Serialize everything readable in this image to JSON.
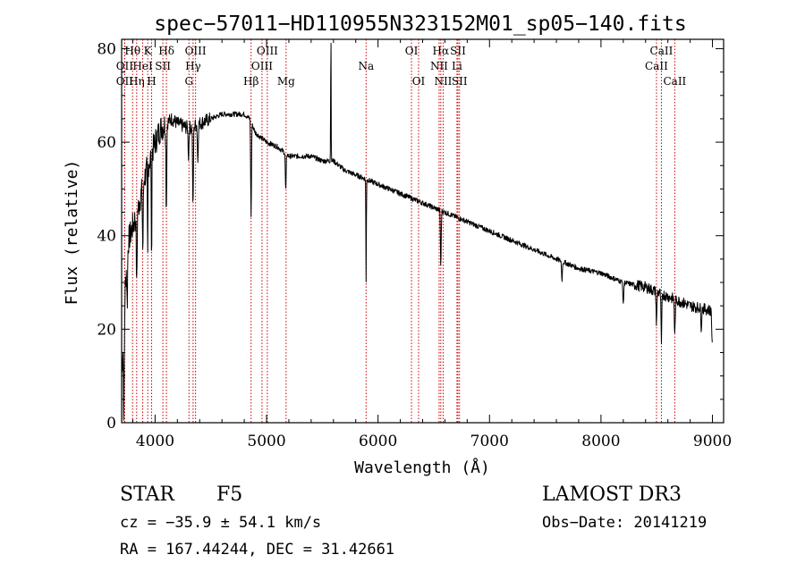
{
  "chart_data": {
    "type": "line",
    "title": "spec−57011−HD110955N323152M01_sp05−140.fits",
    "xlabel": "Wavelength (Å)",
    "ylabel": "Flux (relative)",
    "xlim": [
      3700,
      9100
    ],
    "ylim": [
      0,
      82
    ],
    "x_ticks": [
      4000,
      5000,
      6000,
      7000,
      8000,
      9000
    ],
    "y_ticks": [
      0,
      20,
      40,
      60,
      80
    ],
    "x_tick_labels": [
      "4000",
      "5000",
      "6000",
      "7000",
      "8000",
      "9000"
    ],
    "y_tick_labels": [
      "0",
      "20",
      "40",
      "60",
      "80"
    ],
    "continuum": {
      "x": [
        3700,
        3750,
        3800,
        3850,
        3900,
        3950,
        4000,
        4050,
        4100,
        4150,
        4200,
        4300,
        4400,
        4500,
        4600,
        4700,
        4800,
        4850,
        4900,
        5000,
        5100,
        5200,
        5300,
        5400,
        5500,
        5600,
        5700,
        5800,
        5900,
        6000,
        6100,
        6200,
        6300,
        6400,
        6500,
        6600,
        6700,
        6800,
        6900,
        7000,
        7200,
        7400,
        7600,
        7800,
        8000,
        8200,
        8400,
        8600,
        8800,
        8990,
        9000
      ],
      "y": [
        10,
        38,
        42,
        46,
        52,
        56,
        60,
        63,
        64,
        65,
        64,
        63,
        64,
        65,
        66,
        66,
        66,
        65,
        62,
        60,
        59,
        57,
        57,
        57,
        56,
        56,
        54,
        53,
        52,
        51,
        50,
        49,
        48,
        47,
        46,
        45,
        44,
        43,
        42,
        41,
        39,
        37,
        35,
        33,
        32,
        30,
        29,
        27,
        25,
        24,
        14
      ]
    },
    "features": [
      {
        "x": 3720,
        "depth": 20
      },
      {
        "x": 3750,
        "depth": 12
      },
      {
        "x": 3835,
        "depth": 16
      },
      {
        "x": 3890,
        "depth": 14
      },
      {
        "x": 3933,
        "depth": 22
      },
      {
        "x": 3968,
        "depth": 26
      },
      {
        "x": 4101,
        "depth": 18
      },
      {
        "x": 4300,
        "depth": 6
      },
      {
        "x": 4340,
        "depth": 18
      },
      {
        "x": 4383,
        "depth": 8
      },
      {
        "x": 4861,
        "depth": 20
      },
      {
        "x": 5172,
        "depth": 8
      },
      {
        "x": 5577,
        "depth": -28
      },
      {
        "x": 5893,
        "depth": 22
      },
      {
        "x": 6563,
        "depth": 12
      },
      {
        "x": 7650,
        "depth": 4
      },
      {
        "x": 8200,
        "depth": 5
      },
      {
        "x": 8498,
        "depth": 7
      },
      {
        "x": 8542,
        "depth": 11
      },
      {
        "x": 8662,
        "depth": 8
      },
      {
        "x": 8900,
        "depth": 4
      }
    ],
    "lines": [
      {
        "label": "Hθ",
        "x": 3798,
        "row": 0
      },
      {
        "label": "OII",
        "x": 3727,
        "row": 1
      },
      {
        "label": "OII",
        "x": 3727,
        "row": 2
      },
      {
        "label": "K",
        "x": 3934,
        "row": 0
      },
      {
        "label": "HeI",
        "x": 3889,
        "row": 1
      },
      {
        "label": "Hη",
        "x": 3835,
        "row": 2
      },
      {
        "label": "H",
        "x": 3969,
        "row": 2
      },
      {
        "label": "SII",
        "x": 4070,
        "row": 1
      },
      {
        "label": "Hδ",
        "x": 4102,
        "row": 0
      },
      {
        "label": "OIII",
        "x": 4363,
        "row": 0
      },
      {
        "label": "Hγ",
        "x": 4341,
        "row": 1
      },
      {
        "label": "G",
        "x": 4304,
        "row": 2
      },
      {
        "label": "Hβ",
        "x": 4861,
        "row": 2
      },
      {
        "label": "OIII",
        "x": 5007,
        "row": 0
      },
      {
        "label": "OIII",
        "x": 4959,
        "row": 1
      },
      {
        "label": "Mg",
        "x": 5175,
        "row": 2
      },
      {
        "label": "Na",
        "x": 5893,
        "row": 1
      },
      {
        "label": "OI",
        "x": 6300,
        "row": 0
      },
      {
        "label": "OI",
        "x": 6364,
        "row": 2
      },
      {
        "label": "Hα",
        "x": 6563,
        "row": 0
      },
      {
        "label": "NII",
        "x": 6548,
        "row": 1
      },
      {
        "label": "NII",
        "x": 6584,
        "row": 2
      },
      {
        "label": "SII",
        "x": 6717,
        "row": 0
      },
      {
        "label": "Li",
        "x": 6708,
        "row": 1
      },
      {
        "label": "SII",
        "x": 6731,
        "row": 2
      },
      {
        "label": "CaII",
        "x": 8542,
        "row": 0
      },
      {
        "label": "CaII",
        "x": 8498,
        "row": 1
      },
      {
        "label": "CaII",
        "x": 8662,
        "row": 2
      }
    ]
  },
  "info": {
    "class_label": "STAR",
    "subclass": "F5",
    "survey": "LAMOST DR3",
    "cz": "cz = −35.9 ± 54.1 km/s",
    "obs_date": "Obs−Date: 20141219",
    "coords": "RA = 167.44244, DEC =  31.42661"
  },
  "colors": {
    "line_marker": "#cc0000",
    "spectrum": "#000000",
    "axes": "#000000"
  }
}
